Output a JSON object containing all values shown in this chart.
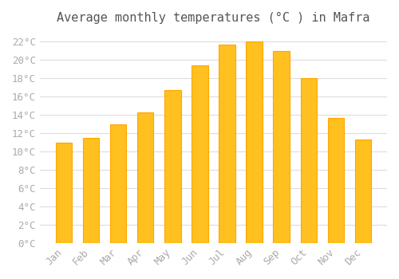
{
  "title": "Average monthly temperatures (°C ) in Mafra",
  "months": [
    "Jan",
    "Feb",
    "Mar",
    "Apr",
    "May",
    "Jun",
    "Jul",
    "Aug",
    "Sep",
    "Oct",
    "Nov",
    "Dec"
  ],
  "temperatures": [
    11,
    11.5,
    13,
    14.3,
    16.7,
    19.4,
    21.7,
    22,
    21,
    18,
    13.7,
    11.3
  ],
  "bar_color": "#FFC020",
  "bar_edge_color": "#FFA500",
  "background_color": "#FFFFFF",
  "grid_color": "#DDDDDD",
  "ylim": [
    0,
    23
  ],
  "ytick_step": 2,
  "title_fontsize": 11,
  "tick_fontsize": 9,
  "font_family": "monospace"
}
